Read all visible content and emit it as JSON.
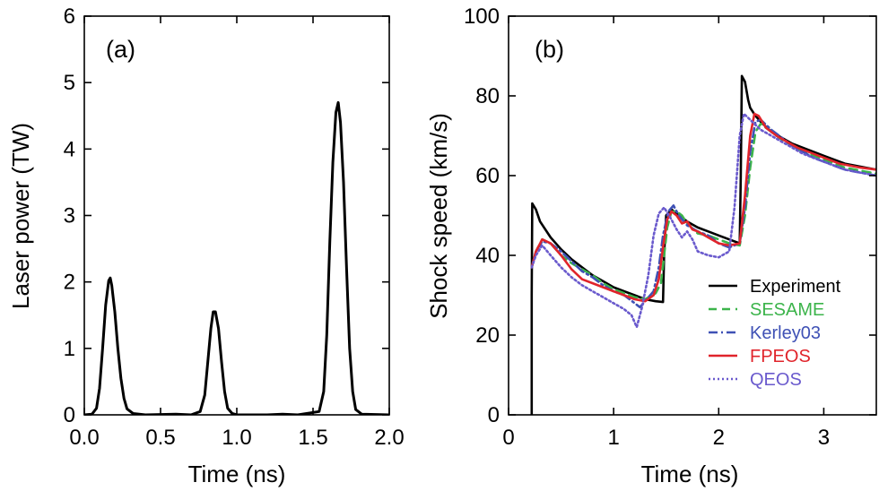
{
  "chart_data": [
    {
      "type": "line",
      "panel_label": "(a)",
      "title": "",
      "xlabel": "Time (ns)",
      "ylabel": "Laser power (TW)",
      "xlim": [
        0,
        2.0
      ],
      "ylim": [
        0,
        6
      ],
      "x_ticks": [
        0,
        0.5,
        1.0,
        1.5,
        2.0
      ],
      "x_tick_labels": [
        "0.0",
        "0.5",
        "1.0",
        "1.5",
        "2.0"
      ],
      "y_ticks": [
        0,
        1,
        2,
        3,
        4,
        5,
        6
      ],
      "y_tick_labels": [
        "0",
        "1",
        "2",
        "3",
        "4",
        "5",
        "6"
      ],
      "grid": false,
      "series": [
        {
          "color": "#000000",
          "points": [
            [
              0.0,
              0
            ],
            [
              0.05,
              0.01
            ],
            [
              0.08,
              0.1
            ],
            [
              0.1,
              0.4
            ],
            [
              0.12,
              1.0
            ],
            [
              0.14,
              1.65
            ],
            [
              0.16,
              2.02
            ],
            [
              0.17,
              2.06
            ],
            [
              0.18,
              1.95
            ],
            [
              0.2,
              1.55
            ],
            [
              0.22,
              1.0
            ],
            [
              0.24,
              0.55
            ],
            [
              0.26,
              0.25
            ],
            [
              0.28,
              0.09
            ],
            [
              0.32,
              0.02
            ],
            [
              0.4,
              0.0
            ],
            [
              0.6,
              0.01
            ],
            [
              0.7,
              0.0
            ],
            [
              0.76,
              0.05
            ],
            [
              0.79,
              0.3
            ],
            [
              0.81,
              0.8
            ],
            [
              0.83,
              1.3
            ],
            [
              0.845,
              1.55
            ],
            [
              0.86,
              1.55
            ],
            [
              0.88,
              1.3
            ],
            [
              0.9,
              0.8
            ],
            [
              0.92,
              0.35
            ],
            [
              0.94,
              0.1
            ],
            [
              0.97,
              0.02
            ],
            [
              1.0,
              0.0
            ],
            [
              1.2,
              0.0
            ],
            [
              1.3,
              0.01
            ],
            [
              1.4,
              0.0
            ],
            [
              1.54,
              0.05
            ],
            [
              1.57,
              0.35
            ],
            [
              1.59,
              1.2
            ],
            [
              1.61,
              2.6
            ],
            [
              1.63,
              3.8
            ],
            [
              1.65,
              4.55
            ],
            [
              1.665,
              4.7
            ],
            [
              1.68,
              4.4
            ],
            [
              1.7,
              3.5
            ],
            [
              1.72,
              2.2
            ],
            [
              1.74,
              1.0
            ],
            [
              1.76,
              0.35
            ],
            [
              1.78,
              0.08
            ],
            [
              1.82,
              0.01
            ],
            [
              2.0,
              0.0
            ]
          ]
        }
      ]
    },
    {
      "type": "line",
      "panel_label": "(b)",
      "title": "",
      "xlabel": "Time (ns)",
      "ylabel": "Shock speed (km/s)",
      "xlim": [
        0,
        3.5
      ],
      "ylim": [
        0,
        100
      ],
      "x_ticks": [
        0,
        1,
        2,
        3
      ],
      "x_tick_labels": [
        "0",
        "1",
        "2",
        "3"
      ],
      "y_ticks": [
        0,
        20,
        40,
        60,
        80,
        100
      ],
      "y_tick_labels": [
        "0",
        "20",
        "40",
        "60",
        "80",
        "100"
      ],
      "grid": false,
      "legend_position": "bottom-right",
      "series": [
        {
          "name": "Experiment",
          "color": "#000000",
          "dash": "solid",
          "points": [
            [
              0.22,
              0
            ],
            [
              0.22,
              30
            ],
            [
              0.225,
              53
            ],
            [
              0.26,
              51.5
            ],
            [
              0.3,
              48.5
            ],
            [
              0.4,
              44.5
            ],
            [
              0.5,
              41.5
            ],
            [
              0.6,
              39
            ],
            [
              0.7,
              37
            ],
            [
              0.8,
              35
            ],
            [
              0.9,
              33.5
            ],
            [
              1.0,
              32
            ],
            [
              1.1,
              31
            ],
            [
              1.2,
              30
            ],
            [
              1.3,
              29
            ],
            [
              1.4,
              28.5
            ],
            [
              1.47,
              28.3
            ],
            [
              1.48,
              40
            ],
            [
              1.5,
              50
            ],
            [
              1.55,
              51.5
            ],
            [
              1.6,
              50.5
            ],
            [
              1.7,
              48.5
            ],
            [
              1.8,
              47
            ],
            [
              1.9,
              46
            ],
            [
              2.0,
              45
            ],
            [
              2.1,
              44
            ],
            [
              2.2,
              43
            ],
            [
              2.21,
              60
            ],
            [
              2.22,
              85
            ],
            [
              2.25,
              83.5
            ],
            [
              2.28,
              79
            ],
            [
              2.3,
              77
            ],
            [
              2.35,
              75
            ],
            [
              2.4,
              73.5
            ],
            [
              2.5,
              71
            ],
            [
              2.6,
              69.5
            ],
            [
              2.7,
              68
            ],
            [
              2.8,
              67
            ],
            [
              2.9,
              66
            ],
            [
              3.0,
              65
            ],
            [
              3.1,
              64
            ],
            [
              3.2,
              63
            ],
            [
              3.3,
              62.5
            ],
            [
              3.4,
              62
            ],
            [
              3.5,
              61.5
            ]
          ]
        },
        {
          "name": "SESAME",
          "color": "#3cb44b",
          "dash": "dashed",
          "points": [
            [
              0.22,
              37
            ],
            [
              0.26,
              41
            ],
            [
              0.32,
              44
            ],
            [
              0.4,
              43
            ],
            [
              0.5,
              40
            ],
            [
              0.6,
              38
            ],
            [
              0.7,
              36.5
            ],
            [
              0.8,
              35
            ],
            [
              0.9,
              33
            ],
            [
              1.0,
              31.5
            ],
            [
              1.1,
              30.5
            ],
            [
              1.2,
              29.5
            ],
            [
              1.3,
              29
            ],
            [
              1.4,
              30.5
            ],
            [
              1.45,
              33
            ],
            [
              1.48,
              40
            ],
            [
              1.51,
              47
            ],
            [
              1.55,
              51
            ],
            [
              1.6,
              51
            ],
            [
              1.65,
              50
            ],
            [
              1.7,
              48
            ],
            [
              1.8,
              45.5
            ],
            [
              1.9,
              45
            ],
            [
              2.0,
              44
            ],
            [
              2.1,
              43
            ],
            [
              2.2,
              42.5
            ],
            [
              2.25,
              50
            ],
            [
              2.3,
              62
            ],
            [
              2.35,
              71
            ],
            [
              2.4,
              73
            ],
            [
              2.5,
              71
            ],
            [
              2.6,
              69
            ],
            [
              2.7,
              67.5
            ],
            [
              2.8,
              66
            ],
            [
              2.9,
              65
            ],
            [
              3.0,
              64
            ],
            [
              3.1,
              63
            ],
            [
              3.2,
              62
            ],
            [
              3.3,
              61.5
            ],
            [
              3.4,
              61
            ],
            [
              3.5,
              60.5
            ]
          ]
        },
        {
          "name": "Kerley03",
          "color": "#3f51b5",
          "dash": "dashdot",
          "points": [
            [
              0.22,
              37
            ],
            [
              0.26,
              41
            ],
            [
              0.32,
              43.5
            ],
            [
              0.4,
              43
            ],
            [
              0.5,
              41
            ],
            [
              0.6,
              38.5
            ],
            [
              0.7,
              36
            ],
            [
              0.8,
              34.5
            ],
            [
              0.9,
              32.5
            ],
            [
              1.0,
              31
            ],
            [
              1.1,
              30
            ],
            [
              1.2,
              28
            ],
            [
              1.25,
              27
            ],
            [
              1.3,
              28.5
            ],
            [
              1.38,
              31
            ],
            [
              1.43,
              37
            ],
            [
              1.47,
              45
            ],
            [
              1.52,
              51
            ],
            [
              1.57,
              52.5
            ],
            [
              1.62,
              50
            ],
            [
              1.7,
              47.5
            ],
            [
              1.8,
              46
            ],
            [
              1.9,
              45
            ],
            [
              2.0,
              43
            ],
            [
              2.1,
              42
            ],
            [
              2.2,
              43
            ],
            [
              2.25,
              52
            ],
            [
              2.3,
              66
            ],
            [
              2.35,
              73.5
            ],
            [
              2.4,
              74
            ],
            [
              2.5,
              71.5
            ],
            [
              2.6,
              69.5
            ],
            [
              2.7,
              67.5
            ],
            [
              2.8,
              66
            ],
            [
              2.9,
              64.5
            ],
            [
              3.0,
              63.5
            ],
            [
              3.1,
              62.5
            ],
            [
              3.2,
              61.5
            ],
            [
              3.3,
              61
            ],
            [
              3.4,
              60.5
            ],
            [
              3.5,
              60
            ]
          ]
        },
        {
          "name": "FPEOS",
          "color": "#e0242b",
          "dash": "solid",
          "points": [
            [
              0.22,
              37
            ],
            [
              0.26,
              41
            ],
            [
              0.32,
              44
            ],
            [
              0.4,
              43
            ],
            [
              0.5,
              40
            ],
            [
              0.6,
              36.5
            ],
            [
              0.7,
              34
            ],
            [
              0.8,
              33
            ],
            [
              0.9,
              32
            ],
            [
              1.0,
              31
            ],
            [
              1.1,
              30
            ],
            [
              1.2,
              29
            ],
            [
              1.3,
              28.5
            ],
            [
              1.38,
              30
            ],
            [
              1.43,
              34
            ],
            [
              1.47,
              42
            ],
            [
              1.51,
              49
            ],
            [
              1.55,
              51
            ],
            [
              1.6,
              50
            ],
            [
              1.65,
              48
            ],
            [
              1.7,
              48.5
            ],
            [
              1.75,
              46.5
            ],
            [
              1.8,
              46
            ],
            [
              1.9,
              44.5
            ],
            [
              2.0,
              43
            ],
            [
              2.1,
              42.5
            ],
            [
              2.2,
              43
            ],
            [
              2.25,
              55
            ],
            [
              2.3,
              70
            ],
            [
              2.34,
              75.5
            ],
            [
              2.38,
              75
            ],
            [
              2.45,
              72
            ],
            [
              2.55,
              70
            ],
            [
              2.65,
              68.5
            ],
            [
              2.75,
              67
            ],
            [
              2.85,
              66
            ],
            [
              2.95,
              65
            ],
            [
              3.05,
              64
            ],
            [
              3.15,
              63
            ],
            [
              3.25,
              62.5
            ],
            [
              3.35,
              62
            ],
            [
              3.5,
              61.5
            ]
          ]
        },
        {
          "name": "QEOS",
          "color": "#6a5acd",
          "dash": "dotted",
          "points": [
            [
              0.22,
              37
            ],
            [
              0.26,
              40
            ],
            [
              0.32,
              42.5
            ],
            [
              0.4,
              40
            ],
            [
              0.5,
              37
            ],
            [
              0.6,
              34.5
            ],
            [
              0.7,
              32.5
            ],
            [
              0.8,
              31
            ],
            [
              0.9,
              29.5
            ],
            [
              1.0,
              28
            ],
            [
              1.1,
              26.5
            ],
            [
              1.17,
              25
            ],
            [
              1.22,
              22
            ],
            [
              1.27,
              27
            ],
            [
              1.33,
              35
            ],
            [
              1.38,
              45
            ],
            [
              1.43,
              50.5
            ],
            [
              1.48,
              52
            ],
            [
              1.55,
              49
            ],
            [
              1.6,
              46.5
            ],
            [
              1.65,
              44.5
            ],
            [
              1.7,
              46
            ],
            [
              1.75,
              44
            ],
            [
              1.8,
              41
            ],
            [
              1.9,
              40
            ],
            [
              2.0,
              39.5
            ],
            [
              2.1,
              41
            ],
            [
              2.15,
              52
            ],
            [
              2.2,
              70
            ],
            [
              2.24,
              75.5
            ],
            [
              2.3,
              74
            ],
            [
              2.4,
              71.5
            ],
            [
              2.5,
              70
            ],
            [
              2.6,
              68.5
            ],
            [
              2.7,
              67
            ],
            [
              2.8,
              65.5
            ],
            [
              2.9,
              64.5
            ],
            [
              3.0,
              63.5
            ],
            [
              3.1,
              62.5
            ],
            [
              3.2,
              61.5
            ],
            [
              3.3,
              61
            ],
            [
              3.4,
              60.5
            ],
            [
              3.5,
              60
            ]
          ]
        }
      ]
    }
  ]
}
